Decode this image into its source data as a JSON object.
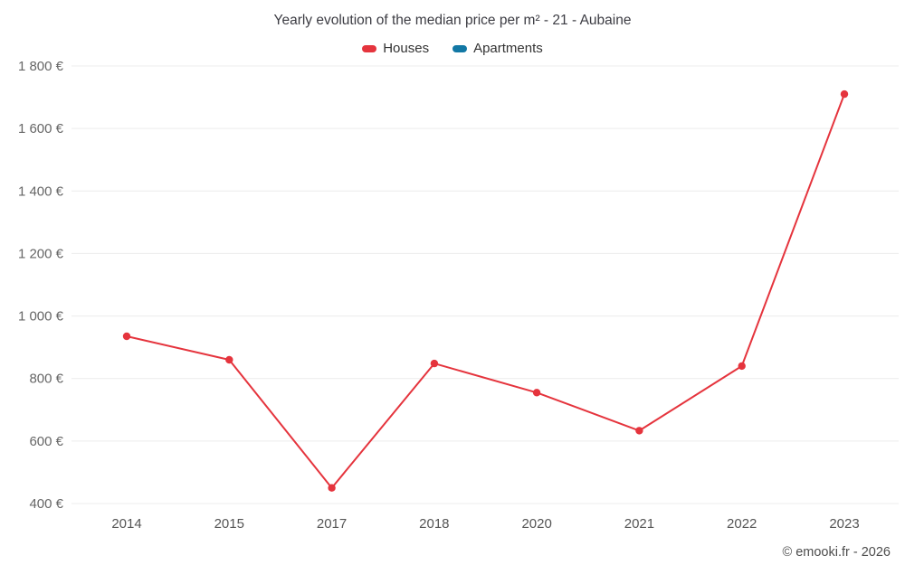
{
  "title": "Yearly evolution of the median price per m² - 21 - Aubaine",
  "legend": {
    "items": [
      {
        "label": "Houses",
        "color": "#e5343d"
      },
      {
        "label": "Apartments",
        "color": "#1278a5"
      }
    ]
  },
  "footer": {
    "copyright": "© emooki.fr - 2026"
  },
  "chart_data": {
    "type": "line",
    "title": "Yearly evolution of the median price per m² - 21 - Aubaine",
    "categories": [
      "2014",
      "2015",
      "2017",
      "2018",
      "2020",
      "2021",
      "2022",
      "2023"
    ],
    "series": [
      {
        "name": "Houses",
        "color": "#e5343d",
        "values": [
          935,
          860,
          450,
          848,
          755,
          633,
          840,
          1710
        ]
      },
      {
        "name": "Apartments",
        "color": "#1278a5",
        "values": []
      }
    ],
    "xlabel": "",
    "ylabel": "",
    "ylim": [
      400,
      1800
    ],
    "yticks": [
      400,
      600,
      800,
      1000,
      1200,
      1400,
      1600,
      1800
    ],
    "ytick_labels": [
      "400 €",
      "600 €",
      "800 €",
      "1 000 €",
      "1 200 €",
      "1 400 €",
      "1 600 €",
      "1 800 €"
    ],
    "grid": true,
    "gridline_color": "#ececec",
    "legend_position": "top"
  }
}
